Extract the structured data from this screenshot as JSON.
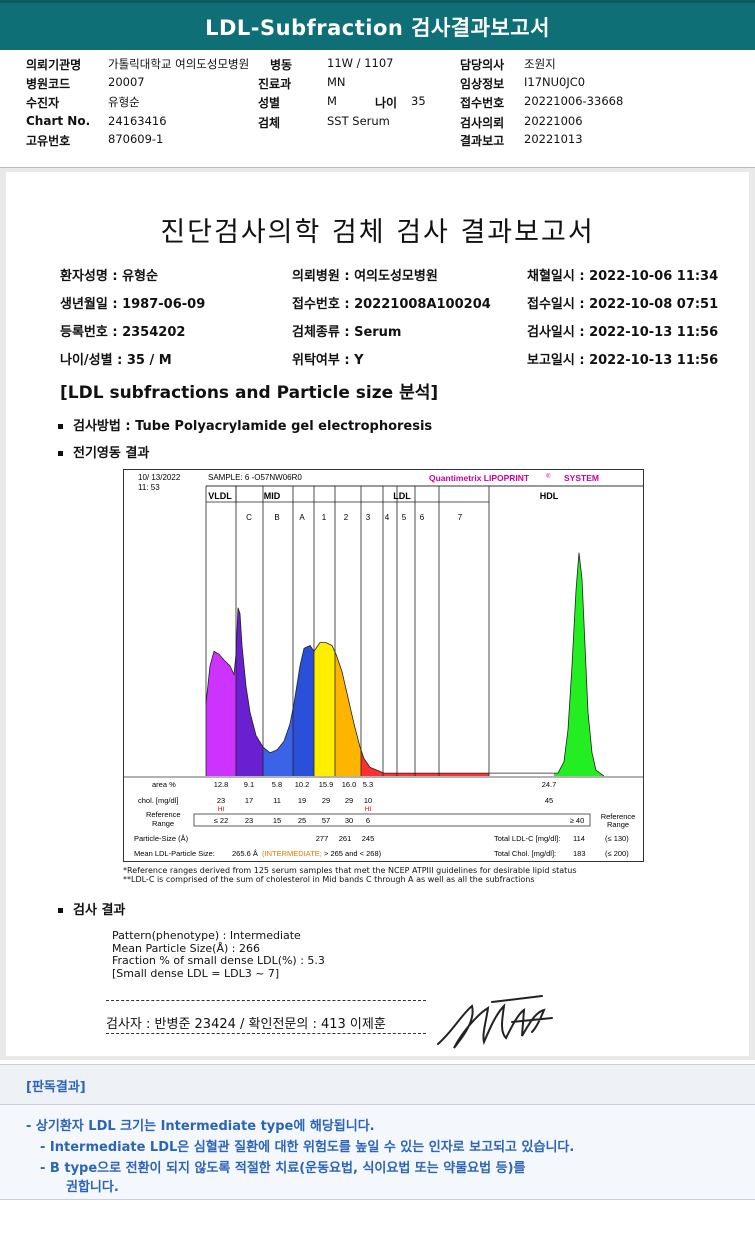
{
  "banner": {
    "title": "LDL-Subfraction 검사결과보고서"
  },
  "header": {
    "hospital_label": "의뢰기관명",
    "hospital": "가톨릭대학교 여의도성모병원",
    "ward_label": "병동",
    "ward": "11W / 1107",
    "doctor_label": "담당의사",
    "doctor": "조원지",
    "code_label": "병원코드",
    "code": "20007",
    "dept_label": "진료과",
    "dept": "MN",
    "clinical_label": "임상정보",
    "clinical": "I17NU0JC0",
    "patient_label": "수진자",
    "patient": "유형순",
    "sex_label": "성별",
    "sex": "M",
    "age_label": "나이",
    "age": "35",
    "receipt_label": "접수번호",
    "receipt": "20221006-33668",
    "chart_label": "Chart No.",
    "chart": "24163416",
    "specimen_label": "검체",
    "specimen": "SST Serum",
    "request_label": "검사의뢰",
    "request": "20221006",
    "uid_label": "고유번호",
    "uid": "870609-1",
    "report_label": "결과보고",
    "report": "20221013"
  },
  "doc": {
    "title": "진단검사의학 검체 검사 결과보고서",
    "patient": "환자성명 : 유형순",
    "dob": "생년월일 : 1987-06-09",
    "regno": "등록번호 : 2354202",
    "agesex": "나이/성별 : 35 / M",
    "hospital": "의뢰병원 : 여의도성모병원",
    "receipt": "접수번호 : 20221008A100204",
    "specimen": "검체종류 : Serum",
    "consign": "위탁여부 : Y",
    "collect": "채혈일시 : 2022-10-06 11:34",
    "received": "접수일시 : 2022-10-08 07:51",
    "tested": "검사일시 : 2022-10-13 11:56",
    "reported": "보고일시 : 2022-10-13 11:56",
    "section": "[LDL subfractions and Particle size 분석]",
    "method": "검사방법 : Tube Polyacrylamide gel electrophoresis",
    "electro": "전기영동 결과",
    "results_heading": "검사 결과",
    "result_lines": [
      "Pattern(phenotype) : Intermediate",
      "Mean Particle Size(Å) : 266",
      "Fraction % of small dense LDL(%) : 5.3",
      "[Small dense LDL = LDL3 ~ 7]"
    ],
    "signer": "검사자 : 반병준  23424  /  확인전문의 : 413  이제훈",
    "footnote1": "*Reference ranges derived from 125 serum samples that met the NCEP ATPIII guidelines for desirable lipid status",
    "footnote2": "**LDL-C is comprised of the sum of cholesterol in Mid bands C through A as well as all the subfractions"
  },
  "chart_data": {
    "type": "area",
    "date": "10/ 13/2022",
    "time": "11: 53",
    "sample": "SAMPLE:   6 -O57NW06R0",
    "brand": "Quantimetrix LIPOPRINT",
    "brand_suffix": "SYSTEM",
    "bands": [
      "VLDL",
      "C",
      "B",
      "A",
      "1",
      "2",
      "3",
      "4",
      "5",
      "6",
      "7",
      "HDL"
    ],
    "groups": [
      "VLDL",
      "MID",
      "LDL",
      "HDL"
    ],
    "rows": {
      "area": {
        "label": "area %",
        "values": [
          "12.8",
          "9.1",
          "5.8",
          "10.2",
          "15.9",
          "16.0",
          "5.3",
          "",
          "",
          "",
          "",
          "24.7"
        ]
      },
      "chol": {
        "label": "chol. [mg/dl]",
        "values": [
          "23",
          "17",
          "11",
          "19",
          "29",
          "29",
          "10",
          "",
          "",
          "",
          "",
          "45"
        ],
        "flags": [
          "HI",
          "",
          "",
          "",
          "",
          "",
          "HI"
        ]
      },
      "ref": {
        "label": "Reference Range",
        "values": [
          "≤ 22",
          "23",
          "15",
          "25",
          "57",
          "30",
          "6"
        ],
        "hdl": "≥ 40",
        "right_label": "Reference Range"
      }
    },
    "particle_label": "Particle-Size (Å)",
    "particle_sizes": [
      "277",
      "261",
      "245"
    ],
    "mean_label": "Mean LDL-Particle Size:",
    "mean_value": "265.6 Å",
    "mean_class": "INTERMEDIATE",
    "mean_range": "> 265 and < 268",
    "total_ldl": {
      "label": "Total LDL-C [mg/dl]:",
      "value": "114",
      "ref": "(≤ 130)"
    },
    "total_chol": {
      "label": "Total Chol. [mg/dl]:",
      "value": "183",
      "ref": "(≤ 200)"
    }
  },
  "judgement": {
    "heading": "[판독결과]",
    "lines": [
      "-  상기환자 LDL 크기는 Intermediate type에 해당됩니다.",
      "-  Intermediate LDL은 심혈관 질환에 대한 위험도를 높일 수 있는 인자로 보고되고 있습니다.",
      "-  B type으로 전환이 되지 않도록 적절한 치료(운동요법, 식이요법 또는 약물요법 등)를",
      "권합니다."
    ]
  },
  "colors": {
    "banner": "#0f6f77",
    "judge_text": "#2c65b8"
  }
}
